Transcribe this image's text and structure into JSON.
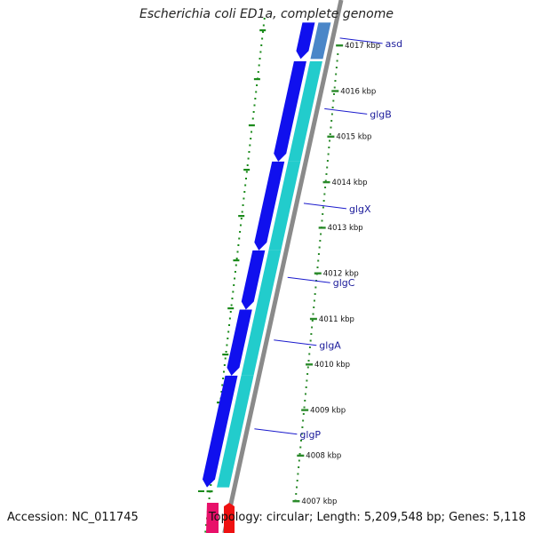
{
  "title": "Escherichia coli ED1a, complete genome",
  "accession_text": "Accession: NC_011745",
  "topology_text": "Topology: circular; Length: 5,209,548 bp; Genes: 5,118",
  "colors": {
    "backbone": "#8a8a8a",
    "forward_gene": "#1010ee",
    "reverse_gene": "#22cccc",
    "asd_gene": "#4a86c8",
    "gc_dots": "#1a8a1a",
    "tick": "#2a8a2a",
    "label_line": "#1a1acc",
    "label_text": "#1a1a9a",
    "extra_pink": "#e8106a",
    "extra_red": "#ee1111"
  },
  "scale_ticks": [
    {
      "kbp": 4017,
      "label": "4017 kbp"
    },
    {
      "kbp": 4016,
      "label": "4016 kbp"
    },
    {
      "kbp": 4015,
      "label": "4015 kbp"
    },
    {
      "kbp": 4014,
      "label": "4014 kbp"
    },
    {
      "kbp": 4013,
      "label": "4013 kbp"
    },
    {
      "kbp": 4012,
      "label": "4012 kbp"
    },
    {
      "kbp": 4011,
      "label": "4011 kbp"
    },
    {
      "kbp": 4010,
      "label": "4010 kbp"
    },
    {
      "kbp": 4009,
      "label": "4009 kbp"
    },
    {
      "kbp": 4008,
      "label": "4008 kbp"
    },
    {
      "kbp": 4007,
      "label": "4007 kbp"
    }
  ],
  "genes": [
    {
      "name": "asd",
      "start_kbp": 4017.5,
      "end_kbp": 4016.7
    },
    {
      "name": "glgB",
      "start_kbp": 4016.65,
      "end_kbp": 4014.45
    },
    {
      "name": "glgX",
      "start_kbp": 4014.45,
      "end_kbp": 4012.5
    },
    {
      "name": "glgC",
      "start_kbp": 4012.5,
      "end_kbp": 4011.2
    },
    {
      "name": "glgA",
      "start_kbp": 4011.2,
      "end_kbp": 4009.75
    },
    {
      "name": "glgP",
      "start_kbp": 4009.75,
      "end_kbp": 4007.3
    }
  ]
}
